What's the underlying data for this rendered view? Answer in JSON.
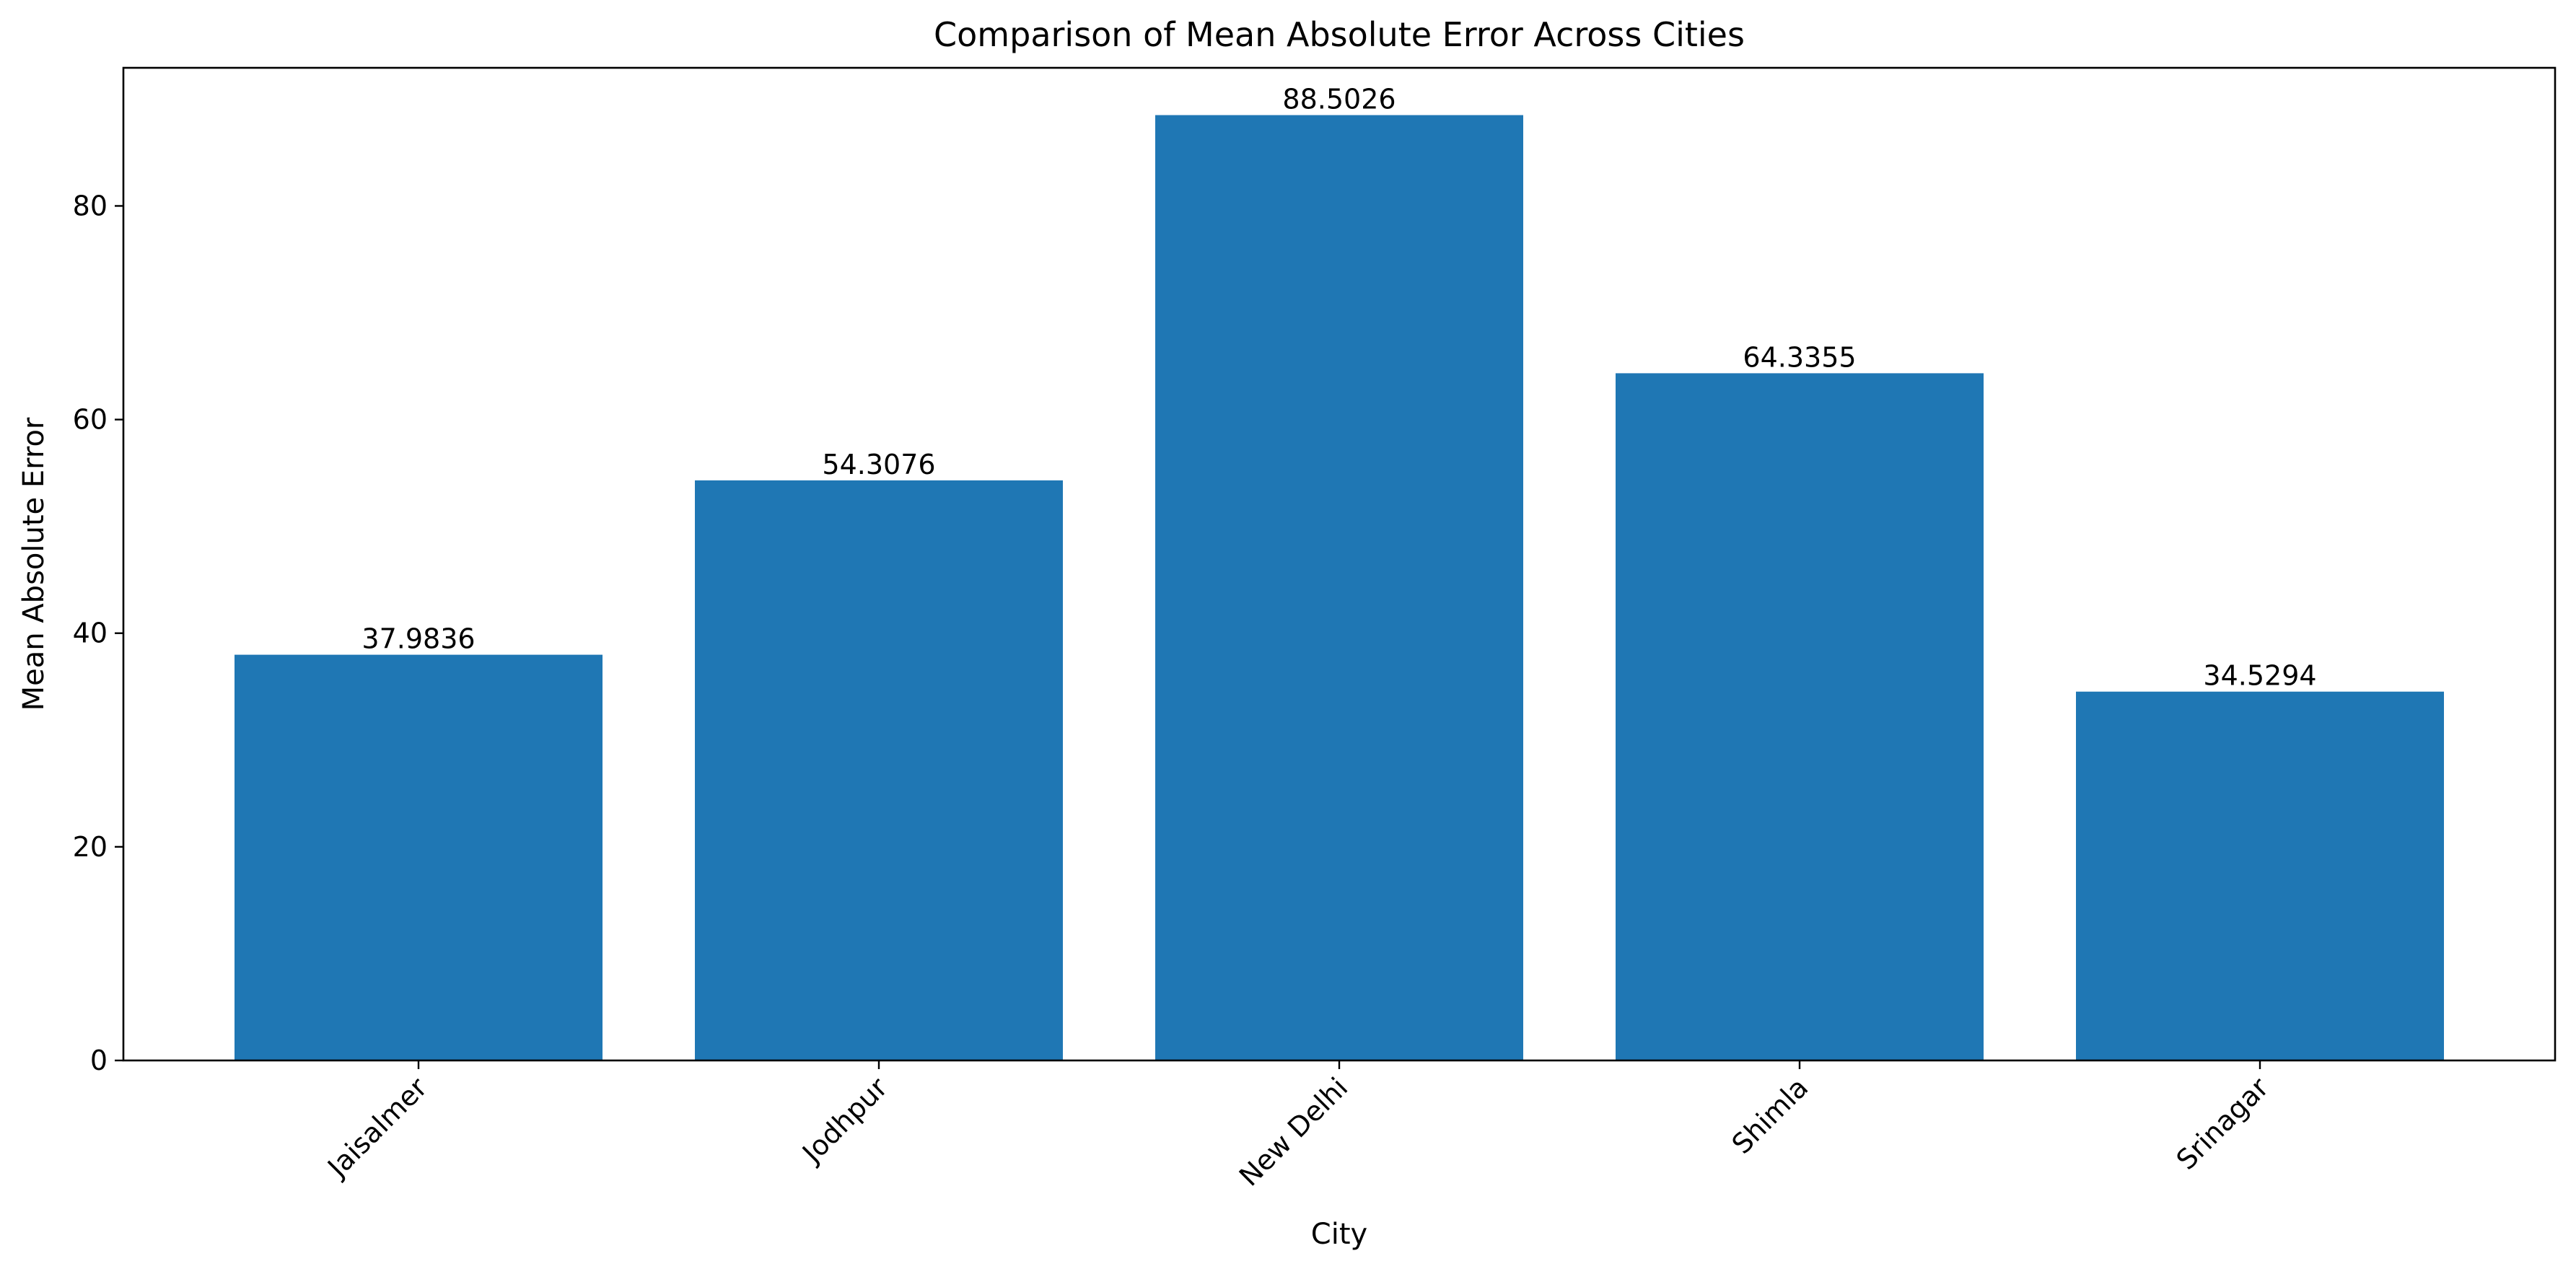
{
  "chart_data": {
    "type": "bar",
    "title": "Comparison of Mean Absolute Error Across Cities",
    "xlabel": "City",
    "ylabel": "Mean Absolute Error",
    "categories": [
      "Jaisalmer",
      "Jodhpur",
      "New Delhi",
      "Shimla",
      "Srinagar"
    ],
    "values": [
      37.9836,
      54.3076,
      88.5026,
      64.3355,
      34.5294
    ],
    "value_labels": [
      "37.9836",
      "54.3076",
      "88.5026",
      "64.3355",
      "34.5294"
    ],
    "ylim": [
      0,
      92.93
    ],
    "yticks": [
      0,
      20,
      40,
      60,
      80
    ],
    "ytick_labels": [
      "0",
      "20",
      "40",
      "60",
      "80"
    ],
    "grid": false,
    "legend": "none",
    "bar_color": "#1f77b4",
    "xtick_rotation_deg": 45
  }
}
